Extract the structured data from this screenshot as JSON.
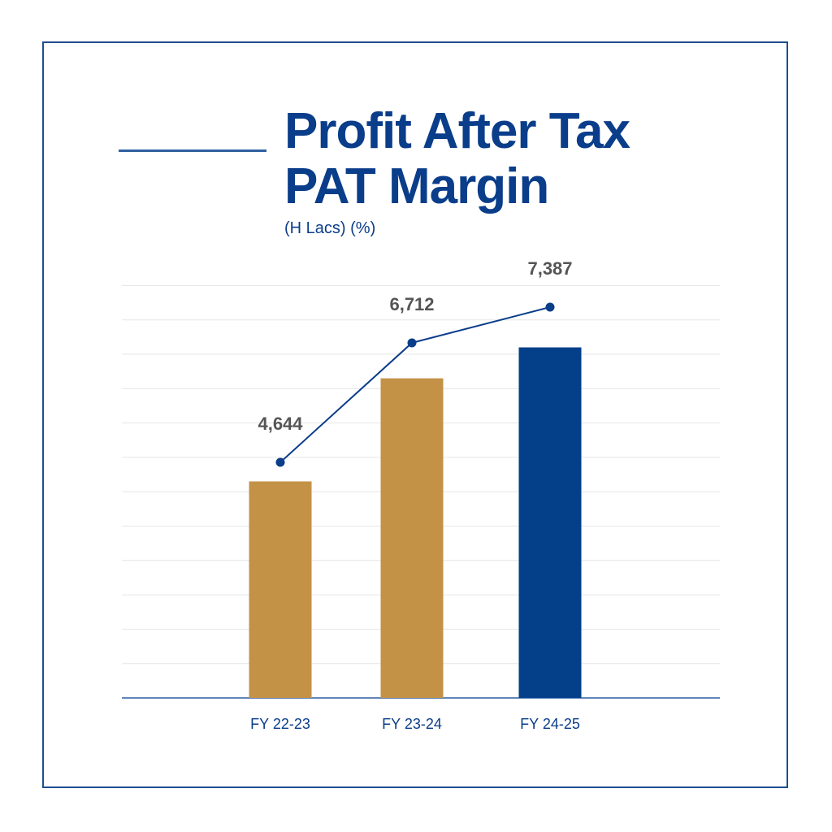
{
  "chart_data": {
    "type": "bar+line",
    "title": [
      "Profit After Tax",
      "PAT Margin"
    ],
    "subtitle": "(H Lacs) (%)",
    "categories": [
      "FY 22-23",
      "FY 23-24",
      "FY 24-25"
    ],
    "series": [
      {
        "name": "PAT Margin (%)",
        "type": "bar",
        "values": [
          6.3,
          9.3,
          10.2
        ],
        "colors": [
          "#c39247",
          "#c39247",
          "#043f8a"
        ],
        "note": "unlabeled; estimated in gridline units"
      },
      {
        "name": "Profit After Tax (H Lacs)",
        "type": "line",
        "values": [
          4644,
          6712,
          7387
        ],
        "labels": [
          "4,644",
          "6,712",
          "7,387"
        ],
        "color": "#0a3d8a"
      }
    ],
    "grid": true,
    "colors": {
      "title": "#0a3d8a",
      "label": "#555555",
      "grid": "#e6e6e6",
      "axis": "#2f5fa0"
    }
  }
}
